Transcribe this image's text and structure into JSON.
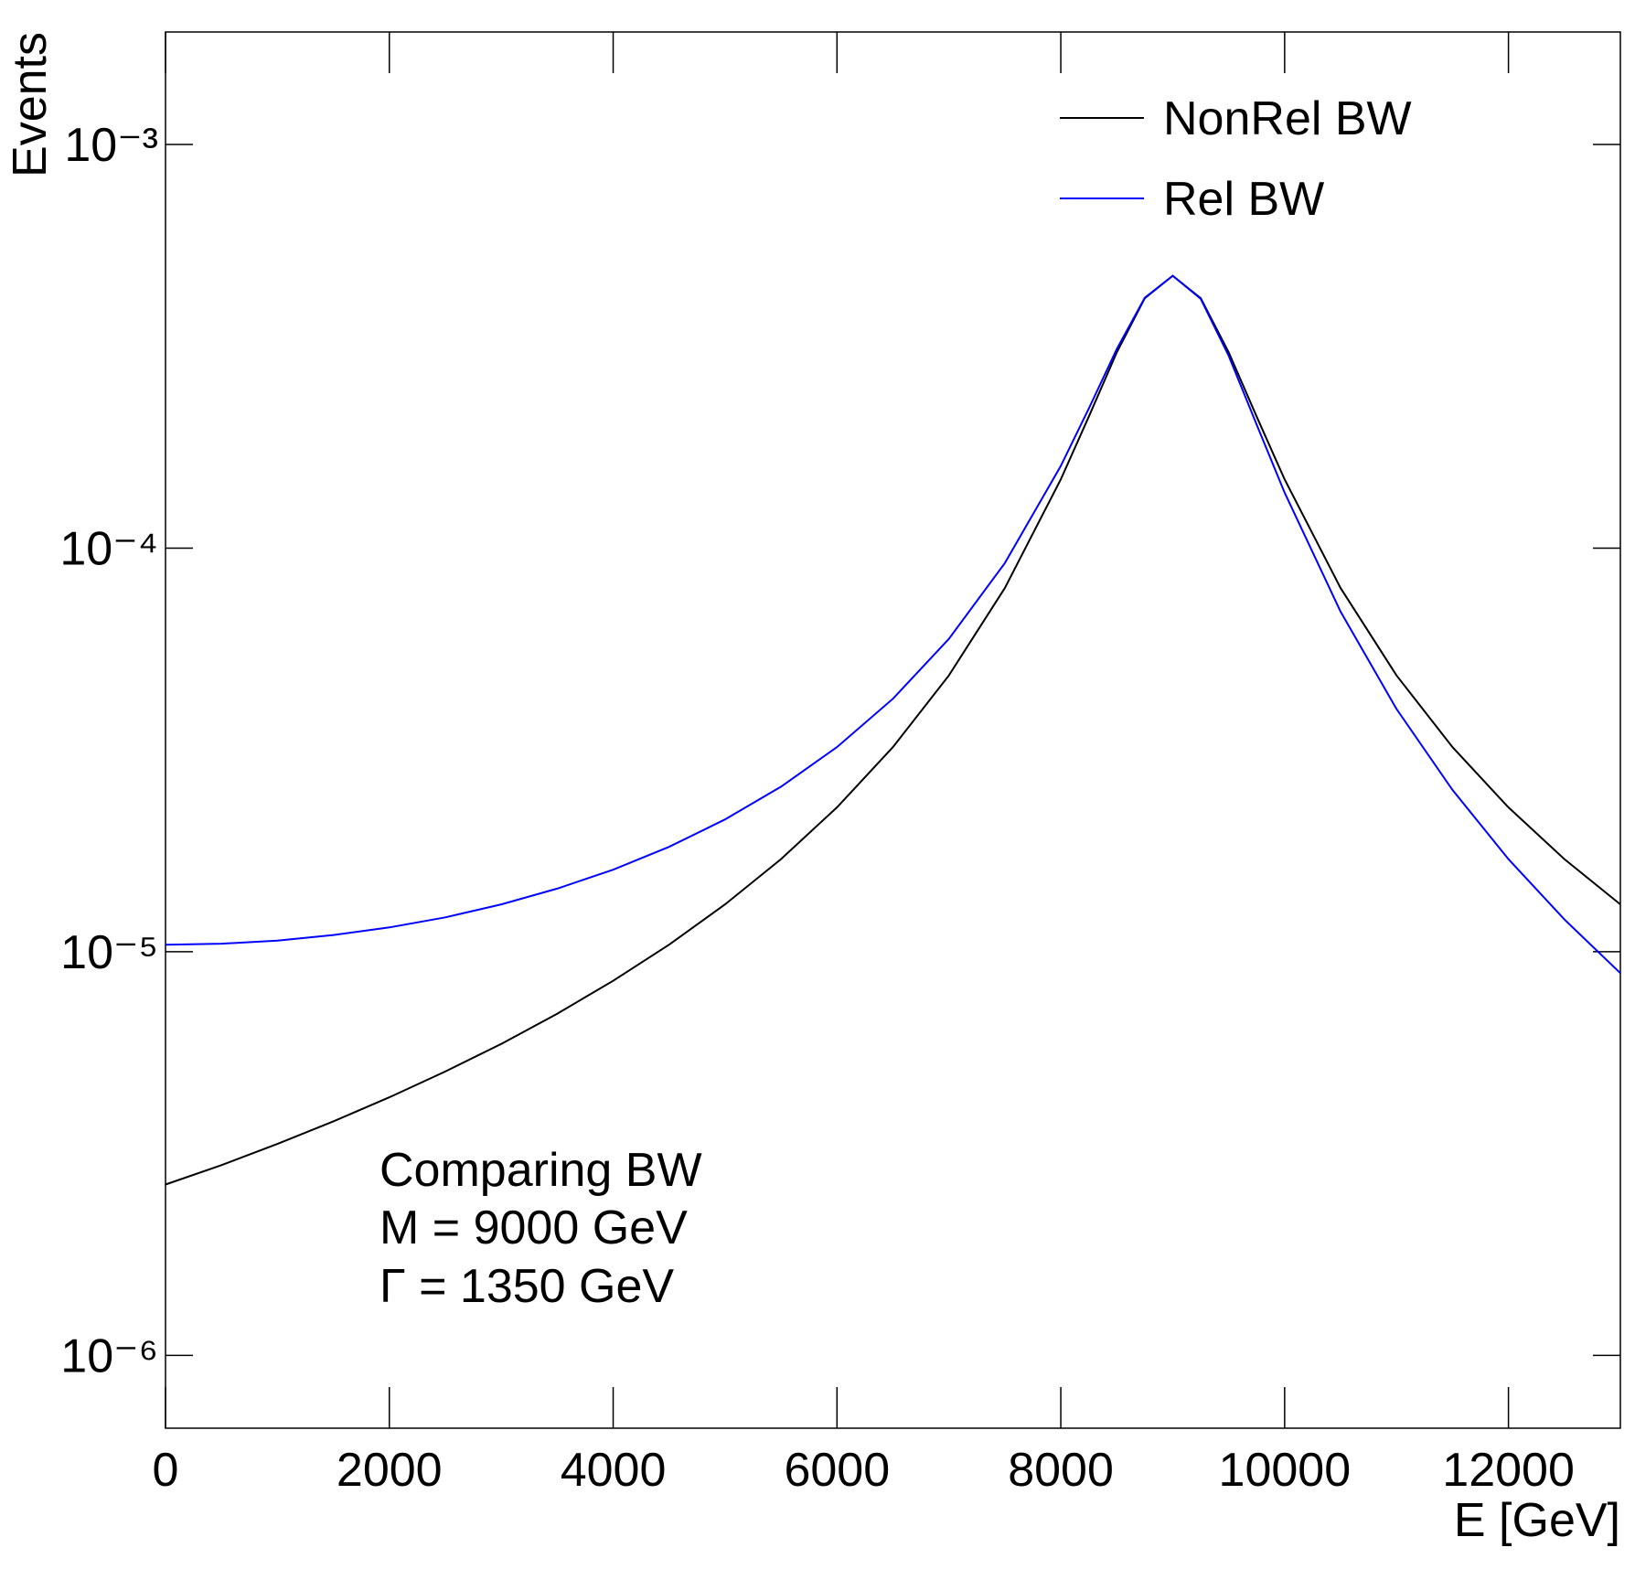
{
  "chart_data": {
    "type": "line",
    "x_label": "E [GeV]",
    "y_label": "Events",
    "annotations": [
      "Comparing BW",
      "M = 9000 GeV",
      "Γ = 1350 GeV"
    ],
    "x": [
      0,
      500,
      1000,
      1500,
      2000,
      2500,
      3000,
      3500,
      4000,
      4500,
      5000,
      5500,
      6000,
      6500,
      7000,
      7500,
      8000,
      8250,
      8500,
      8750,
      9000,
      9250,
      9500,
      9750,
      10000,
      10500,
      11000,
      11500,
      12000,
      12500,
      13000
    ],
    "series": [
      {
        "name": "NonRel BW",
        "color": "#000000",
        "values": [
          2.65e-06,
          2.96e-06,
          3.34e-06,
          3.8e-06,
          4.36e-06,
          5.05e-06,
          5.91e-06,
          7.02e-06,
          8.47e-06,
          1.041e-05,
          1.31e-05,
          1.696e-05,
          2.279e-05,
          3.214e-05,
          4.837e-05,
          7.965e-05,
          0.0001481,
          0.0002117,
          0.0003054,
          0.000416,
          0.000473,
          0.000416,
          0.0003054,
          0.0002117,
          0.0001481,
          7.965e-05,
          4.837e-05,
          3.214e-05,
          2.279e-05,
          1.696e-05,
          1.31e-05
        ]
      },
      {
        "name": "Rel BW",
        "color": "#0000ff",
        "values": [
          1.041e-05,
          1.047e-05,
          1.066e-05,
          1.1e-05,
          1.149e-05,
          1.217e-05,
          1.31e-05,
          1.433e-05,
          1.597e-05,
          1.819e-05,
          2.127e-05,
          2.564e-05,
          3.214e-05,
          4.234e-05,
          5.96e-05,
          9.185e-05,
          0.0001599,
          0.0002217,
          0.0003115,
          0.0004173,
          0.000473,
          0.0004145,
          0.0002994,
          0.0002022,
          0.0001373,
          6.961e-05,
          3.995e-05,
          2.517e-05,
          1.696e-05,
          1.202e-05,
          8.85e-06
        ]
      }
    ],
    "xlim": [
      0,
      13000
    ],
    "xticks": [
      0,
      2000,
      4000,
      6000,
      8000,
      10000,
      12000
    ],
    "ylim": [
      6.6e-07,
      0.0019
    ],
    "ylog": true,
    "yticks": [
      {
        "value": 1e-06,
        "label": "10⁻⁶"
      },
      {
        "value": 1e-05,
        "label": "10⁻⁵"
      },
      {
        "value": 0.0001,
        "label": "10⁻⁴"
      },
      {
        "value": 0.001,
        "label": "10⁻³"
      }
    ],
    "grid": false,
    "legend": "top-right"
  }
}
